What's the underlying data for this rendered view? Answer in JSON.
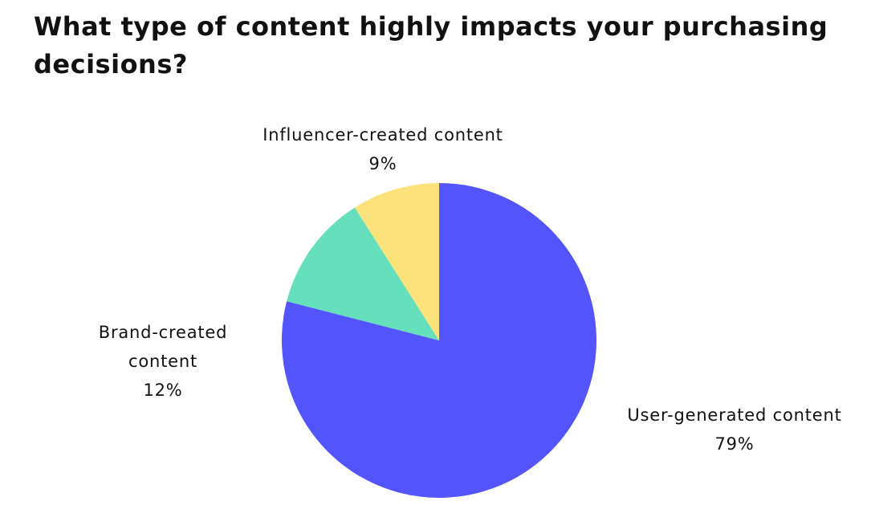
{
  "chart_data": {
    "type": "pie",
    "title": "What type of content highly impacts your purchasing decisions?",
    "categories": [
      "User-generated content",
      "Brand-created content",
      "Influencer-created content"
    ],
    "values": [
      79,
      12,
      9
    ],
    "value_labels": [
      "79%",
      "12%",
      "9%"
    ],
    "colors": [
      "#5454fc",
      "#66dfbd",
      "#fbe27a"
    ]
  }
}
